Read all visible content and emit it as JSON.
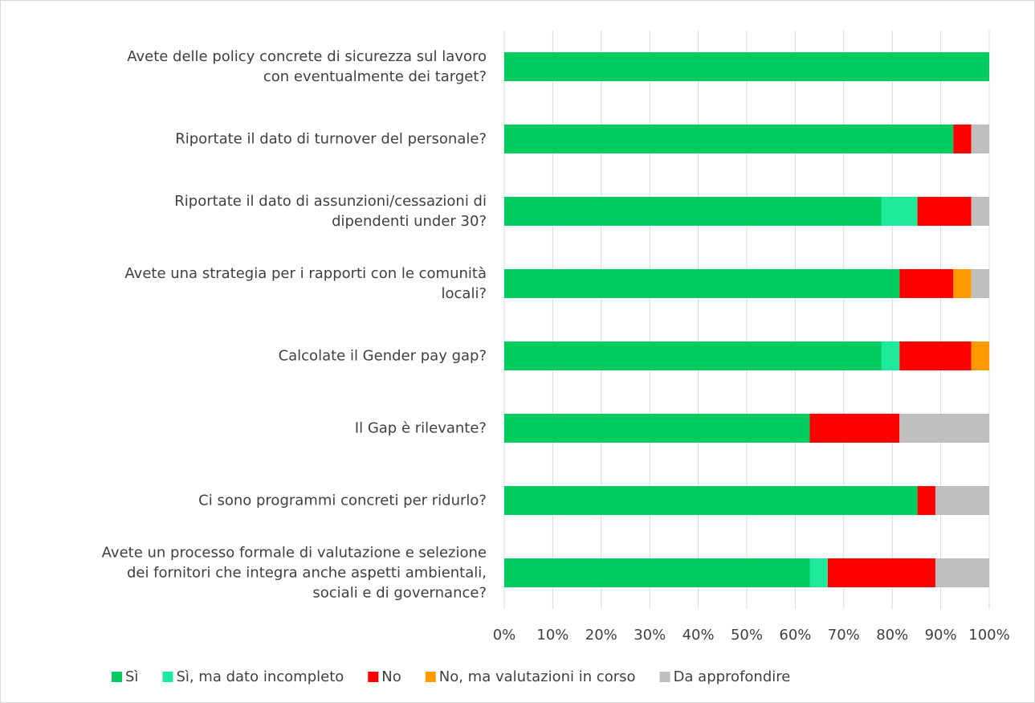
{
  "chart_data": {
    "type": "stacked_bar_horizontal",
    "categories": [
      "Avete delle policy concrete di sicurezza sul lavoro\ncon eventualmente dei target?",
      "Riportate il dato di turnover del personale?",
      "Riportate il dato di assunzioni/cessazioni di\ndipendenti under 30?",
      "Avete una strategia per i rapporti con le comunità\nlocali?",
      "Calcolate il Gender pay gap?",
      "Il Gap è rilevante?",
      "Ci sono programmi concreti per ridurlo?",
      "Avete un processo formale di valutazione e selezione\ndei fornitori che integra anche aspetti ambientali,\nsociali e di governance?"
    ],
    "series": [
      {
        "name": "Sì",
        "color": "#00cc5f",
        "values": [
          100,
          92.6,
          77.8,
          81.5,
          77.8,
          63,
          85.2,
          63
        ]
      },
      {
        "name": "Sì, ma dato incompleto",
        "color": "#1ee89c",
        "values": [
          0,
          0,
          7.4,
          0,
          3.7,
          0,
          0,
          3.7
        ]
      },
      {
        "name": "No",
        "color": "#ff0000",
        "values": [
          0,
          3.7,
          11.1,
          11.1,
          14.8,
          18.5,
          3.7,
          22.2
        ]
      },
      {
        "name": "No, ma valutazioni in corso",
        "color": "#ff9a00",
        "values": [
          0,
          0,
          0,
          3.7,
          3.7,
          0,
          0,
          0
        ]
      },
      {
        "name": "Da approfondire",
        "color": "#bfbfbf",
        "values": [
          0,
          3.7,
          3.7,
          3.7,
          0,
          18.5,
          11.1,
          11.1
        ]
      }
    ],
    "xlim": [
      0,
      100
    ],
    "xticks": [
      {
        "value": 0,
        "label": "0%"
      },
      {
        "value": 10,
        "label": "10%"
      },
      {
        "value": 20,
        "label": "20%"
      },
      {
        "value": 30,
        "label": "30%"
      },
      {
        "value": 40,
        "label": "40%"
      },
      {
        "value": 50,
        "label": "50%"
      },
      {
        "value": 60,
        "label": "60%"
      },
      {
        "value": 70,
        "label": "70%"
      },
      {
        "value": 80,
        "label": "80%"
      },
      {
        "value": 90,
        "label": "90%"
      },
      {
        "value": 100,
        "label": "100%"
      }
    ],
    "grid": true,
    "legend": "bottom"
  }
}
